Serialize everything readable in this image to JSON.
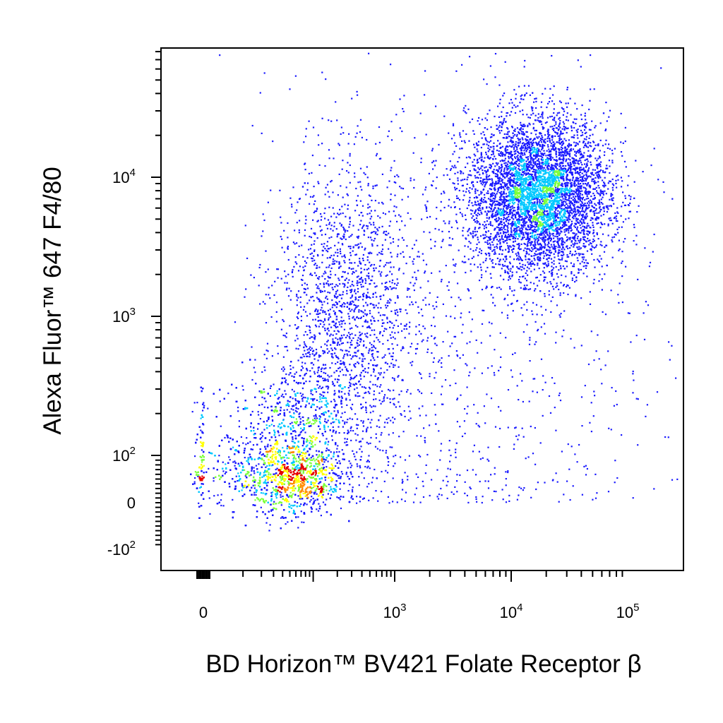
{
  "chart_data": {
    "type": "scatter",
    "subtype": "flow-cytometry density dot plot",
    "xlabel": "BD Horizon™ BV421 Folate Receptor β",
    "ylabel": "Alexa Fluor™ 647 F4/80",
    "x_scale": "biexponential",
    "y_scale": "biexponential",
    "xlim": [
      -50,
      100000
    ],
    "ylim": [
      -150,
      60000
    ],
    "x_ticks": [
      {
        "value": 0,
        "base": "0",
        "exp": ""
      },
      {
        "value": 1000,
        "base": "10",
        "exp": "3"
      },
      {
        "value": 10000,
        "base": "10",
        "exp": "4"
      },
      {
        "value": 100000,
        "base": "10",
        "exp": "5"
      }
    ],
    "y_ticks": [
      {
        "value": -100,
        "base": "-10",
        "exp": "2"
      },
      {
        "value": 0,
        "base": "0",
        "exp": ""
      },
      {
        "value": 100,
        "base": "10",
        "exp": "2"
      },
      {
        "value": 1000,
        "base": "10",
        "exp": "3"
      },
      {
        "value": 10000,
        "base": "10",
        "exp": "4"
      }
    ],
    "color_scale": [
      "#1a1aff",
      "#00c8ff",
      "#7dff3c",
      "#ffff00",
      "#ff8c00",
      "#e60000"
    ],
    "populations": [
      {
        "name": "",
        "x_center": 65,
        "y_center": 55,
        "x_spread": 0.25,
        "y_spread": 0.45,
        "fraction": 0.46
      },
      {
        "name": "",
        "x_center": 17000,
        "y_center": 7500,
        "x_spread": 0.3,
        "y_spread": 0.28,
        "fraction": 0.36
      },
      {
        "name": "",
        "x_center": 250,
        "y_center": 1000,
        "x_spread": 0.45,
        "y_spread": 0.55,
        "fraction": 0.12
      },
      {
        "name": "",
        "x_center": 3000,
        "y_center": 600,
        "x_spread": 0.9,
        "y_spread": 1.0,
        "fraction": 0.06
      }
    ],
    "grid": false,
    "legend": "none"
  }
}
